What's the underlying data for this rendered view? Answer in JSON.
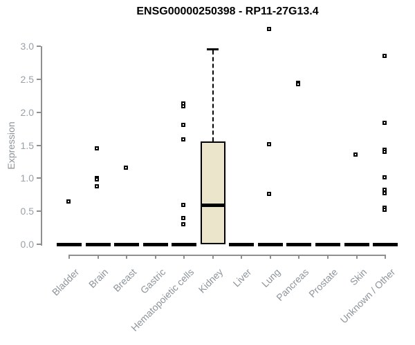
{
  "chart_data": {
    "type": "boxplot",
    "title": "ENSG00000250398 - RP11-27G13.4",
    "ylabel": "Expression",
    "xlabel": "",
    "ylim": [
      0.0,
      3.0
    ],
    "yticks": [
      {
        "value": 0.0,
        "label": "0.0"
      },
      {
        "value": 0.5,
        "label": "0.5"
      },
      {
        "value": 1.0,
        "label": "1.0"
      },
      {
        "value": 1.5,
        "label": "1.5"
      },
      {
        "value": 2.0,
        "label": "2.0"
      },
      {
        "value": 2.5,
        "label": "2.5"
      },
      {
        "value": 3.0,
        "label": "3.0"
      }
    ],
    "categories": [
      "Bladder",
      "Brain",
      "Breast",
      "Gastric",
      "Hematopoietic cells",
      "Kidney",
      "Liver",
      "Lung",
      "Pancreas",
      "Prostate",
      "Skin",
      "Unknown / Other"
    ],
    "zero_bar_categories": [
      "Bladder",
      "Brain",
      "Breast",
      "Gastric",
      "Hematopoietic cells",
      "Liver",
      "Lung",
      "Pancreas",
      "Prostate",
      "Skin",
      "Unknown / Other"
    ],
    "boxes": [
      {
        "category": "Kidney",
        "q1": 0.0,
        "median": 0.59,
        "q3": 1.56,
        "upper_whisker": 2.96,
        "lower_whisker": 0.0
      }
    ],
    "points": [
      {
        "category": "Bladder",
        "value": 0.65
      },
      {
        "category": "Brain",
        "value": 1.45
      },
      {
        "category": "Brain",
        "value": 1.01
      },
      {
        "category": "Brain",
        "value": 0.98
      },
      {
        "category": "Brain",
        "value": 0.88
      },
      {
        "category": "Breast",
        "value": 1.16
      },
      {
        "category": "Hematopoietic cells",
        "value": 2.13
      },
      {
        "category": "Hematopoietic cells",
        "value": 2.09
      },
      {
        "category": "Hematopoietic cells",
        "value": 1.81
      },
      {
        "category": "Hematopoietic cells",
        "value": 1.59
      },
      {
        "category": "Hematopoietic cells",
        "value": 0.6
      },
      {
        "category": "Hematopoietic cells",
        "value": 0.4
      },
      {
        "category": "Hematopoietic cells",
        "value": 0.31
      },
      {
        "category": "Lung",
        "value": 3.26
      },
      {
        "category": "Lung",
        "value": 1.52
      },
      {
        "category": "Lung",
        "value": 0.77
      },
      {
        "category": "Pancreas",
        "value": 2.45
      },
      {
        "category": "Pancreas",
        "value": 2.42
      },
      {
        "category": "Skin",
        "value": 1.36
      },
      {
        "category": "Unknown / Other",
        "value": 2.85
      },
      {
        "category": "Unknown / Other",
        "value": 1.84
      },
      {
        "category": "Unknown / Other",
        "value": 1.43
      },
      {
        "category": "Unknown / Other",
        "value": 1.4
      },
      {
        "category": "Unknown / Other",
        "value": 1.02
      },
      {
        "category": "Unknown / Other",
        "value": 0.83
      },
      {
        "category": "Unknown / Other",
        "value": 0.78
      },
      {
        "category": "Unknown / Other",
        "value": 0.56
      },
      {
        "category": "Unknown / Other",
        "value": 0.52
      }
    ],
    "colors": {
      "box_fill": "#EBE5CB",
      "box_border": "#000000",
      "axis": "#8f8f8f",
      "tick_label": "#98a0a8",
      "category_label": "#8d949a",
      "title": "#000000",
      "point_border": "#000000",
      "point_fill": "#ffffff"
    },
    "legend": null,
    "grid": false
  }
}
